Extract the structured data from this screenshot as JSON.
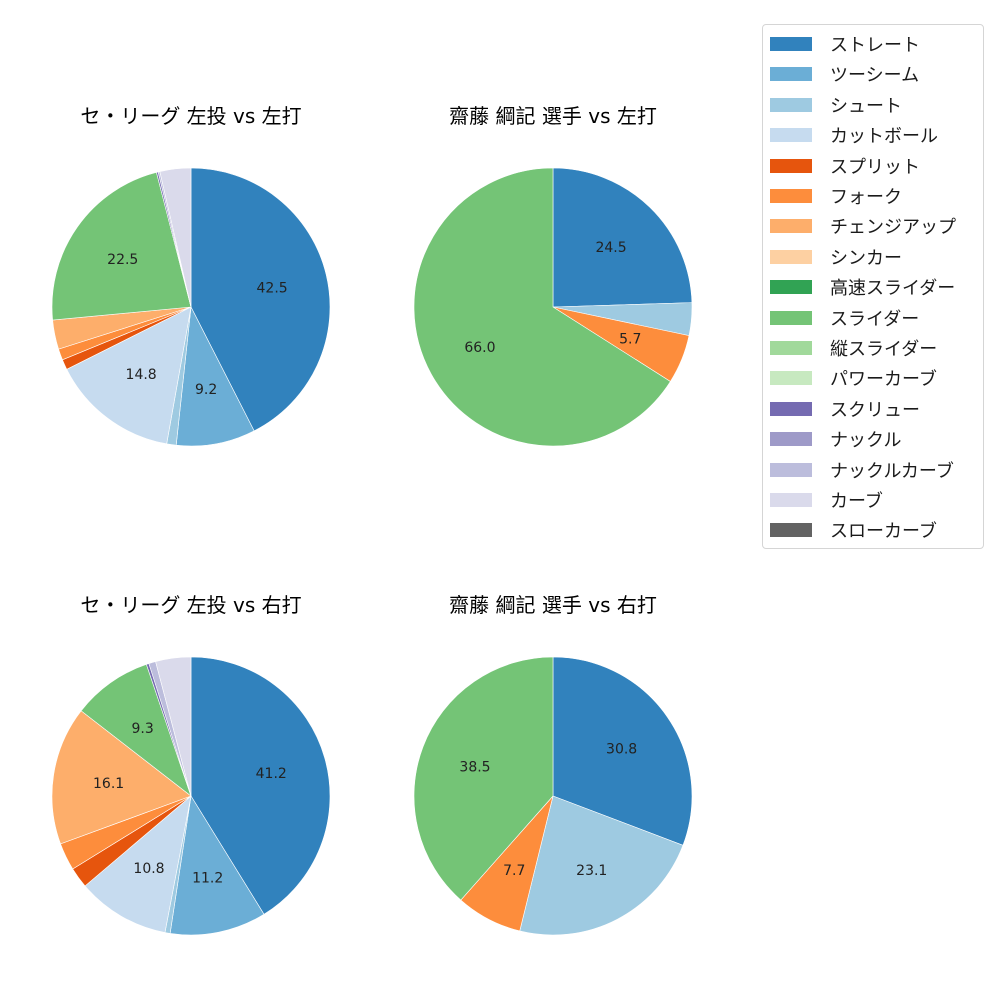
{
  "colors": {
    "ストレート": "#3182bd",
    "ツーシーム": "#6baed6",
    "シュート": "#9ecae1",
    "カットボール": "#c6dbef",
    "スプリット": "#e6550d",
    "フォーク": "#fd8d3c",
    "チェンジアップ": "#fdae6b",
    "シンカー": "#fdd0a2",
    "高速スライダー": "#31a354",
    "スライダー": "#74c476",
    "縦スライダー": "#a1d99b",
    "パワーカーブ": "#c7e9c0",
    "スクリュー": "#756bb1",
    "ナックル": "#9e9ac8",
    "ナックルカーブ": "#bcbddc",
    "カーブ": "#dadaeb",
    "スローカーブ": "#636363"
  },
  "legend": {
    "items": [
      {
        "label": "ストレート"
      },
      {
        "label": "ツーシーム"
      },
      {
        "label": "シュート"
      },
      {
        "label": "カットボール"
      },
      {
        "label": "スプリット"
      },
      {
        "label": "フォーク"
      },
      {
        "label": "チェンジアップ"
      },
      {
        "label": "シンカー"
      },
      {
        "label": "高速スライダー"
      },
      {
        "label": "スライダー"
      },
      {
        "label": "縦スライダー"
      },
      {
        "label": "パワーカーブ"
      },
      {
        "label": "スクリュー"
      },
      {
        "label": "ナックル"
      },
      {
        "label": "ナックルカーブ"
      },
      {
        "label": "カーブ"
      },
      {
        "label": "スローカーブ"
      }
    ]
  },
  "panels": [
    {
      "title": "セ・リーグ 左投 vs 左打"
    },
    {
      "title": "齋藤 綱記 選手 vs 左打"
    },
    {
      "title": "セ・リーグ 左投 vs 右打"
    },
    {
      "title": "齋藤 綱記 選手 vs 右打"
    }
  ],
  "chart_data": [
    {
      "type": "pie",
      "title": "セ・リーグ 左投 vs 左打",
      "categories": [
        "ストレート",
        "ツーシーム",
        "シュート",
        "カットボール",
        "スプリット",
        "フォーク",
        "チェンジアップ",
        "スライダー",
        "スクリュー",
        "ナックルカーブ",
        "カーブ"
      ],
      "values": [
        42.5,
        9.2,
        1.1,
        14.8,
        1.2,
        1.3,
        3.4,
        22.5,
        0.2,
        0.2,
        3.6
      ],
      "labels_shown": [
        42.5,
        9.2,
        null,
        14.8,
        null,
        null,
        null,
        22.5,
        null,
        null,
        null
      ],
      "start_angle": 90,
      "direction": "clockwise"
    },
    {
      "type": "pie",
      "title": "齋藤 綱記 選手 vs 左打",
      "categories": [
        "ストレート",
        "シュート",
        "フォーク",
        "スライダー"
      ],
      "values": [
        24.5,
        3.8,
        5.7,
        66.0
      ],
      "labels_shown": [
        24.5,
        null,
        5.7,
        66.0
      ],
      "start_angle": 90,
      "direction": "clockwise"
    },
    {
      "type": "pie",
      "title": "セ・リーグ 左投 vs 右打",
      "categories": [
        "ストレート",
        "ツーシーム",
        "シュート",
        "カットボール",
        "スプリット",
        "フォーク",
        "チェンジアップ",
        "スライダー",
        "スクリュー",
        "ナックルカーブ",
        "カーブ"
      ],
      "values": [
        41.2,
        11.2,
        0.6,
        10.8,
        2.4,
        3.2,
        16.1,
        9.3,
        0.3,
        0.8,
        4.1
      ],
      "labels_shown": [
        41.2,
        11.2,
        null,
        10.8,
        null,
        null,
        16.1,
        9.3,
        null,
        null,
        null
      ],
      "start_angle": 90,
      "direction": "clockwise"
    },
    {
      "type": "pie",
      "title": "齋藤 綱記 選手 vs 右打",
      "categories": [
        "ストレート",
        "シュート",
        "フォーク",
        "スライダー"
      ],
      "values": [
        30.8,
        23.1,
        7.7,
        38.5
      ],
      "labels_shown": [
        30.8,
        23.1,
        7.7,
        38.5
      ],
      "start_angle": 90,
      "direction": "clockwise"
    }
  ]
}
